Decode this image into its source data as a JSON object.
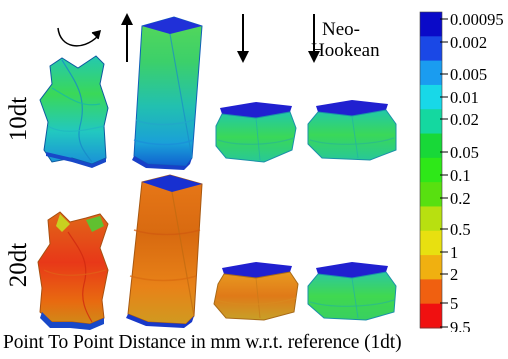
{
  "row_labels": [
    "10dt",
    "20dt"
  ],
  "model_label": [
    "Neo-",
    "Hookean"
  ],
  "motion_icons": [
    "rotate-arrow-icon",
    "up-arrow-icon",
    "down-arrow-icon",
    "down-arrow-icon"
  ],
  "colorbar": {
    "ticks": [
      "0.00095",
      "0.002",
      "0.005",
      "0.01",
      "0.02",
      "0.05",
      "0.1",
      "0.2",
      "0.5",
      "1",
      "2",
      "5",
      "9.5"
    ],
    "colors": [
      "#0a0ac8",
      "#1a48e6",
      "#1a9cf0",
      "#18d8e8",
      "#14d8a0",
      "#18d838",
      "#2ee818",
      "#58e010",
      "#b8e010",
      "#e8e010",
      "#f0b010",
      "#f06010",
      "#f01010"
    ]
  },
  "caption": "Point To Point Distance in mm w.r.t. reference (1dt)"
}
